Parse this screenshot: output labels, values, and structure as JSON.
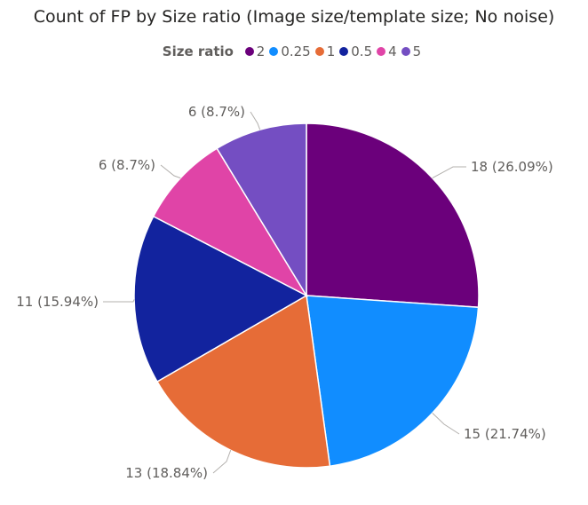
{
  "chart_data": {
    "type": "pie",
    "title": "Count of FP by Size ratio (Image size/template size; No noise)",
    "legend": {
      "title": "Size ratio",
      "placement": "top-left",
      "items": [
        "2",
        "0.25",
        "1",
        "0.5",
        "4",
        "5"
      ]
    },
    "slices": [
      {
        "category": "2",
        "value": 18,
        "percent": "26.09%",
        "label": "18 (26.09%)",
        "color": "#6b007b"
      },
      {
        "category": "0.25",
        "value": 15,
        "percent": "21.74%",
        "label": "15 (21.74%)",
        "color": "#118dff"
      },
      {
        "category": "1",
        "value": 13,
        "percent": "18.84%",
        "label": "13 (18.84%)",
        "color": "#e66c37"
      },
      {
        "category": "0.5",
        "value": 11,
        "percent": "15.94%",
        "label": "11 (15.94%)",
        "color": "#12239e"
      },
      {
        "category": "4",
        "value": 6,
        "percent": "8.7%",
        "label": "6 (8.7%)",
        "color": "#e044a7"
      },
      {
        "category": "5",
        "value": 6,
        "percent": "8.7%",
        "label": "6 (8.7%)",
        "color": "#744ec2"
      }
    ]
  }
}
